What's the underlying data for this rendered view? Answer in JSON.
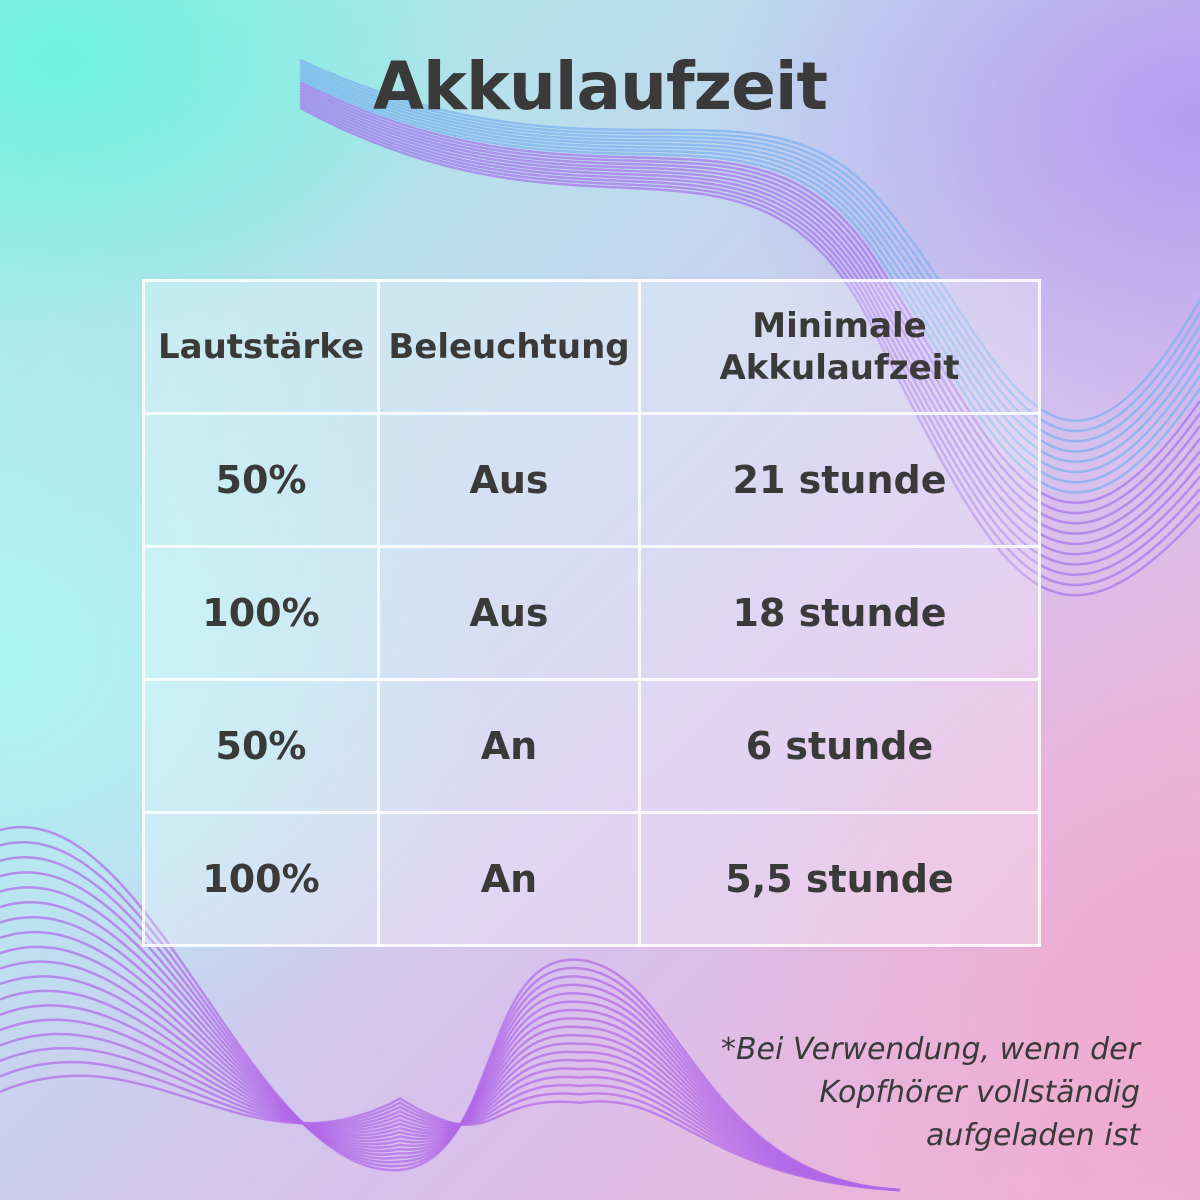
{
  "title": "Akkulaufzeit",
  "table": {
    "headers": [
      "Lautstärke",
      "Beleuchtung",
      "Minimale Akkulaufzeit"
    ],
    "rows": [
      [
        "50%",
        "Aus",
        "21 stunde"
      ],
      [
        "100%",
        "Aus",
        "18 stunde"
      ],
      [
        "50%",
        "An",
        "6 stunde"
      ],
      [
        "100%",
        "An",
        "5,5 stunde"
      ]
    ]
  },
  "footnote": [
    "*Bei Verwendung, wenn der",
    "Kopfhörer vollständig",
    "aufgeladen ist"
  ],
  "colors": {
    "text": "#3a3a3a",
    "wave": "#b070e8"
  }
}
